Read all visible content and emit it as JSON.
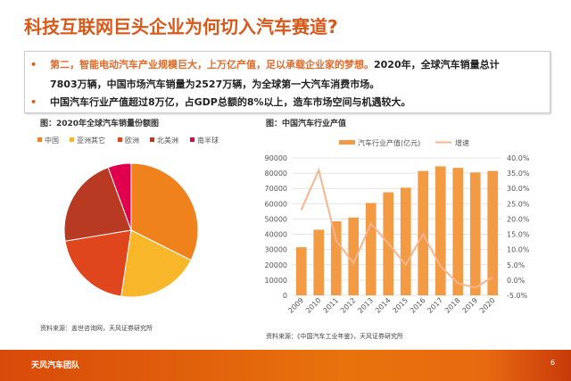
{
  "title": "科技互联网巨头企业为何切入汽车赛道?",
  "bullets": [
    {
      "highlight": "第二，智能电动汽车产业规模巨大，上万亿产值，足以承载企业家的梦想。",
      "rest": "2020年，全球汽车销量总计",
      "line2": "7803万辆，中国市场汽车销量为2527万辆，为全球第一大汽车消费市场。"
    },
    {
      "text": "中国汽车行业产值超过8万亿，占GDP总额的8%以上，造车市场空间与机遇较大。"
    }
  ],
  "bullet_mark": "•",
  "chart_data": [
    {
      "type": "pie",
      "title": "图：2020年全球汽车销量份额图",
      "categories": [
        "中国",
        "亚洲其它",
        "欧洲",
        "北美洲",
        "南半球"
      ],
      "values": [
        32.4,
        20,
        20,
        22,
        5.6
      ],
      "colors": [
        "#f0821e",
        "#f8b62b",
        "#e0461e",
        "#b83a22",
        "#e0004d"
      ],
      "legend_position": "top",
      "source": "资料来源：盖世咨询网，天风证券研究所"
    },
    {
      "type": "bar+line",
      "title": "图：中国汽车行业产值",
      "categories": [
        "2009",
        "2010",
        "2011",
        "2012",
        "2013",
        "2014",
        "2015",
        "2016",
        "2017",
        "2018",
        "2019",
        "2020"
      ],
      "series": [
        {
          "name": "汽车行业产值(亿元)",
          "type": "bar",
          "axis": "left",
          "color": "#f39a44",
          "values": [
            31500,
            43000,
            48500,
            51000,
            60500,
            67500,
            70500,
            81500,
            84500,
            83500,
            80500,
            81500
          ]
        },
        {
          "name": "增速",
          "type": "line",
          "axis": "right",
          "color": "#f7b58e",
          "values": [
            23,
            36,
            13,
            5.5,
            18.5,
            12,
            5,
            15,
            4.5,
            -1,
            -2.5,
            1
          ]
        }
      ],
      "ylim_left": [
        0,
        90000
      ],
      "yticks_left": [
        "90000",
        "80000",
        "70000",
        "60000",
        "50000",
        "40000",
        "30000",
        "20000",
        "10000",
        "0"
      ],
      "ylim_right": [
        -5,
        40
      ],
      "yticks_right": [
        "40.0%",
        "35.0%",
        "30.0%",
        "25.0%",
        "20.0%",
        "15.0%",
        "10.0%",
        "5.0%",
        "0.0%",
        "-5.0%"
      ],
      "grid": true,
      "legend_position": "top",
      "source": "资料来源：《中国汽车工业年鉴》，天风证券研究所"
    }
  ],
  "footer": {
    "team": "天风汽车团队",
    "page": "6"
  }
}
